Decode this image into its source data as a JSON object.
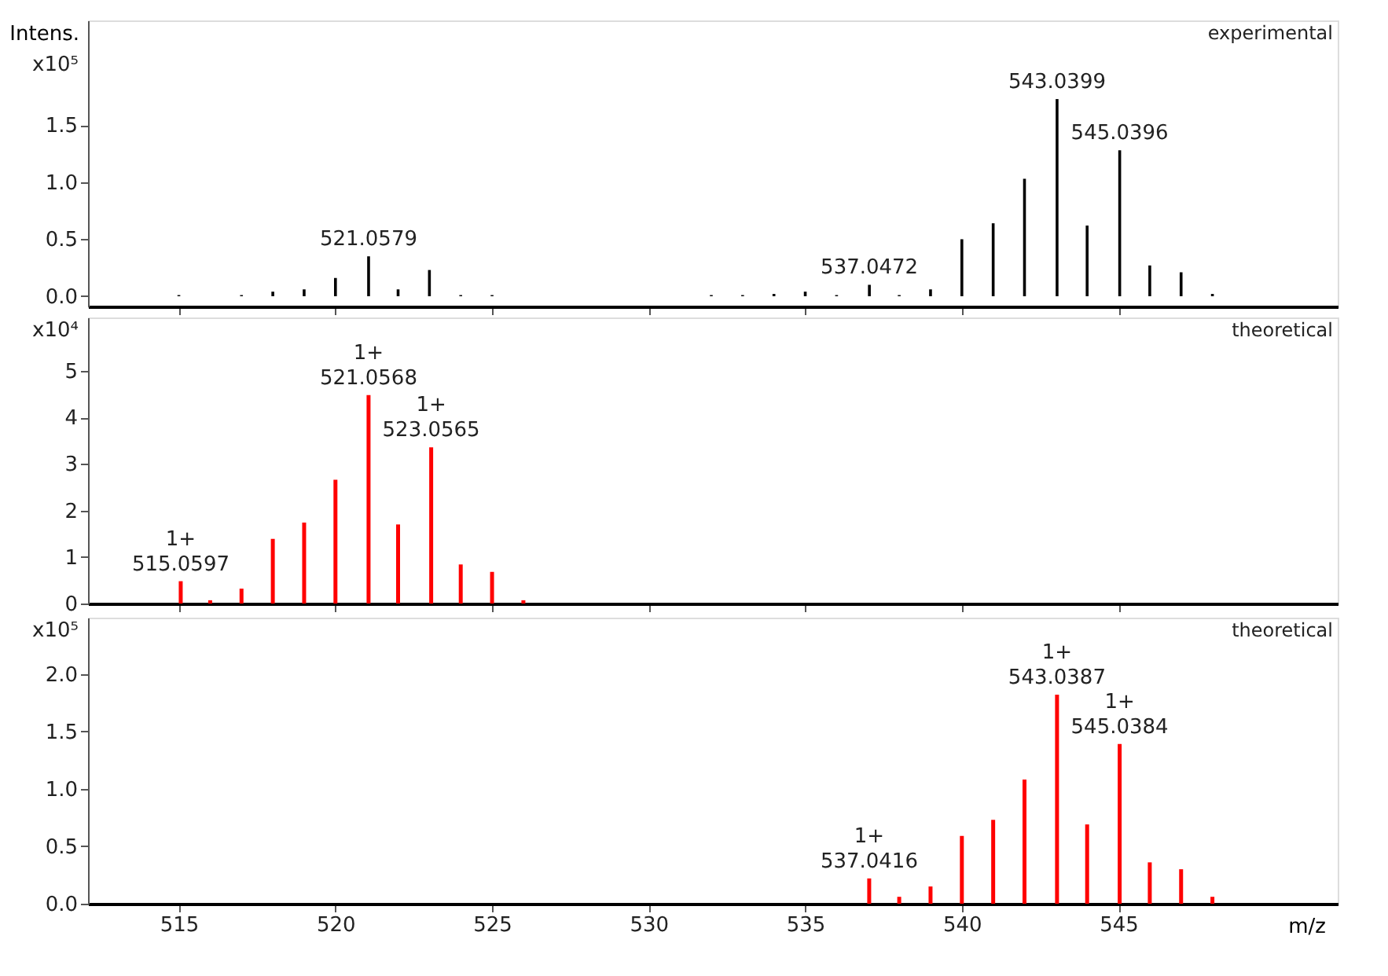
{
  "chart_data": [
    {
      "type": "bar",
      "ylabel": "Intens.",
      "annotations": [
        "x10⁵",
        "experimental",
        {
          "text": "521.0579",
          "x": 521.0579,
          "y": 0.35
        },
        {
          "text": "537.0472",
          "x": 537.0472,
          "y": 0.1
        },
        {
          "text": "543.0399",
          "x": 543.0399,
          "y": 1.73
        },
        {
          "text": "545.0396",
          "x": 545.0396,
          "y": 1.28
        }
      ],
      "x": [
        515,
        517,
        518,
        519,
        520,
        521.0579,
        522,
        523,
        524,
        525,
        532,
        533,
        534,
        535,
        536,
        537.0472,
        538,
        539,
        540,
        541,
        542,
        543.0399,
        544,
        545.0396,
        546,
        547,
        548
      ],
      "series": [
        {
          "color": "#000000",
          "values": [
            0.01,
            0.01,
            0.04,
            0.06,
            0.16,
            0.35,
            0.06,
            0.23,
            0.01,
            0.01,
            0.01,
            0.01,
            0.02,
            0.04,
            0.01,
            0.1,
            0.01,
            0.06,
            0.5,
            0.64,
            1.03,
            1.73,
            0.62,
            1.28,
            0.27,
            0.21,
            0.02
          ]
        }
      ],
      "xlim": [
        512.1,
        552
      ],
      "xticks": [
        515,
        520,
        525,
        530,
        535,
        540,
        545
      ],
      "ylim": [
        -0.09,
        2.42
      ],
      "yticks": [
        {
          "value": 0,
          "label": "0.0"
        },
        {
          "value": 0.5,
          "label": "0.5"
        },
        {
          "value": 1,
          "label": "1.0"
        },
        {
          "value": 1.5,
          "label": "1.5"
        }
      ],
      "tick_labels": "y",
      "grid": false,
      "legend": false
    },
    {
      "type": "bar",
      "annotations": [
        "x10⁴",
        "theoretical",
        {
          "text": "1+",
          "x": 515.0597,
          "y": 0.48
        },
        {
          "text": "515.0597",
          "x": 515.0597,
          "y": 0.48
        },
        {
          "text": "1+",
          "x": 521.0568,
          "y": 4.48
        },
        {
          "text": "521.0568",
          "x": 521.0568,
          "y": 4.48
        },
        {
          "text": "1+",
          "x": 523.0565,
          "y": 3.36
        },
        {
          "text": "523.0565",
          "x": 523.0565,
          "y": 3.36
        }
      ],
      "x": [
        515.0597,
        516,
        517,
        518,
        519,
        520,
        521.0568,
        522,
        523.0565,
        524,
        525,
        526
      ],
      "series": [
        {
          "color": "#ff0000",
          "values": [
            0.48,
            0.07,
            0.32,
            1.39,
            1.74,
            2.66,
            4.48,
            1.7,
            3.36,
            0.84,
            0.68,
            0.07
          ]
        }
      ],
      "xlim": [
        512.1,
        552
      ],
      "xticks": [
        515,
        520,
        525,
        530,
        535,
        540,
        545
      ],
      "ylim": [
        0,
        6.15
      ],
      "yticks": [
        0,
        1,
        2,
        3,
        4,
        5
      ],
      "tick_labels": "y",
      "grid": false,
      "legend": false
    },
    {
      "type": "bar",
      "xlabel": "m/z",
      "annotations": [
        "x10⁵",
        "theoretical",
        {
          "text": "1+",
          "x": 537.0416,
          "y": 0.22
        },
        {
          "text": "537.0416",
          "x": 537.0416,
          "y": 0.22
        },
        {
          "text": "1+",
          "x": 543.0387,
          "y": 1.82
        },
        {
          "text": "543.0387",
          "x": 543.0387,
          "y": 1.82
        },
        {
          "text": "1+",
          "x": 545.0384,
          "y": 1.39
        },
        {
          "text": "545.0384",
          "x": 545.0384,
          "y": 1.39
        }
      ],
      "x": [
        537.0416,
        538,
        539,
        540,
        541,
        542,
        543.0387,
        544,
        545.0384,
        546,
        547,
        548
      ],
      "series": [
        {
          "color": "#ff0000",
          "values": [
            0.22,
            0.06,
            0.15,
            0.59,
            0.73,
            1.08,
            1.82,
            0.69,
            1.39,
            0.36,
            0.3,
            0.06
          ]
        }
      ],
      "xlim": [
        512.1,
        552
      ],
      "xticks": [
        515,
        520,
        525,
        530,
        535,
        540,
        545
      ],
      "ylim": [
        0,
        2.49
      ],
      "yticks": [
        {
          "value": 0,
          "label": "0.0"
        },
        {
          "value": 0.5,
          "label": "0.5"
        },
        {
          "value": 1,
          "label": "1.0"
        },
        {
          "value": 1.5,
          "label": "1.5"
        },
        {
          "value": 2,
          "label": "2.0"
        }
      ],
      "grid": false,
      "legend": false
    }
  ]
}
